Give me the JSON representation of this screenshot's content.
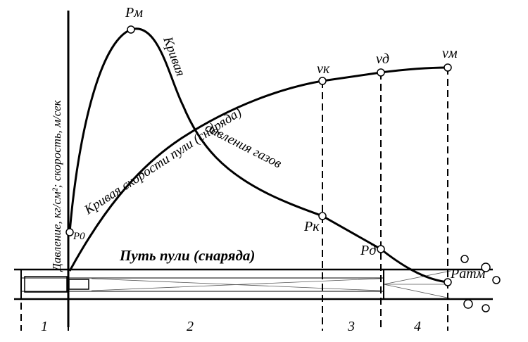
{
  "axis_label": "Давление, кг/см²; скорость, м/сек",
  "pressure_curve": {
    "label_top": "Кривая",
    "label_bottom": "давления газов"
  },
  "velocity_curve": {
    "label": "Кривая скорости пули (снаряда)"
  },
  "points": {
    "p_max": "Pм",
    "p_0": "P0",
    "p_k": "Pк",
    "p_d": "Pд",
    "p_atm": "Pатм",
    "v_k": "vк",
    "v_d": "vд",
    "v_m": "vм"
  },
  "path_label": "Путь пули (снаряда)",
  "sections": [
    "1",
    "2",
    "3",
    "4"
  ]
}
